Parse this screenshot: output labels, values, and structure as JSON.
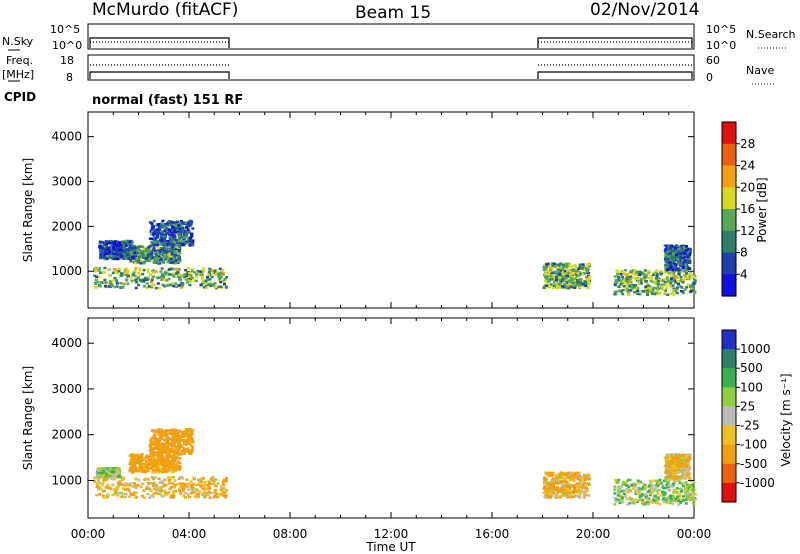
{
  "header": {
    "station": "McMurdo (fitACF)",
    "beam": "Beam 15",
    "date": "02/Nov/2014"
  },
  "top_panels": {
    "nsky_label": "N.Sky",
    "nsky_ticks": [
      "10^5",
      "10^0"
    ],
    "nsearch_label": "N.Search",
    "nsearch_ticks": [
      "10^5",
      "10^0"
    ],
    "freq_label_line1": "Freq.",
    "freq_label_line2": "[MHz]",
    "freq_ticks": [
      "18",
      "8"
    ],
    "nave_label": "Nave",
    "nave_ticks": [
      "60",
      "0"
    ],
    "cpid_label": "CPID",
    "cpid_value": "normal (fast) 151 RF"
  },
  "chart_data": [
    {
      "type": "heatmap",
      "name": "power",
      "ylabel": "Slant Range [km]",
      "yticks": [
        "4000",
        "3000",
        "2000",
        "1000"
      ],
      "ylim": [
        180,
        4550
      ],
      "colorbar_label": "Power [dB]",
      "colorbar_ticks": [
        "28",
        "24",
        "20",
        "16",
        "12",
        "8",
        "4"
      ],
      "colors": [
        "#1010e0",
        "#2040b0",
        "#2e7e6a",
        "#59a858",
        "#d8d820",
        "#f0a010",
        "#e86010",
        "#e01010"
      ],
      "blobs": [
        {
          "t": [
            0.2,
            5.45
          ],
          "r": [
            650,
            1100
          ],
          "v": 14
        },
        {
          "t": [
            1.6,
            3.6
          ],
          "r": [
            1200,
            1600
          ],
          "v": 11
        },
        {
          "t": [
            2.4,
            4.1
          ],
          "r": [
            1600,
            2150
          ],
          "v": 7
        },
        {
          "t": [
            0.4,
            1.8
          ],
          "r": [
            1300,
            1700
          ],
          "v": 6
        },
        {
          "t": [
            18.0,
            19.8
          ],
          "r": [
            650,
            1200
          ],
          "v": 13
        },
        {
          "t": [
            20.8,
            24.0
          ],
          "r": [
            500,
            1050
          ],
          "v": 14
        },
        {
          "t": [
            22.8,
            23.8
          ],
          "r": [
            1050,
            1600
          ],
          "v": 8
        }
      ]
    },
    {
      "type": "heatmap",
      "name": "velocity",
      "ylabel": "Slant Range [km]",
      "yticks": [
        "4000",
        "3000",
        "2000",
        "1000"
      ],
      "ylim": [
        180,
        4550
      ],
      "colorbar_label": "Velocity [m s⁻¹]",
      "colorbar_ticks": [
        "1000",
        "500",
        "100",
        "25",
        "-25",
        "-100",
        "-500",
        "-1000"
      ],
      "colors": [
        "#2030c0",
        "#2e7e6a",
        "#3cb050",
        "#90d040",
        "#bbbbbb",
        "#f0c020",
        "#f0a010",
        "#e86010",
        "#e01010"
      ],
      "blobs": [
        {
          "t": [
            0.2,
            5.45
          ],
          "r": [
            650,
            1100
          ],
          "v": -100
        },
        {
          "t": [
            1.6,
            3.6
          ],
          "r": [
            1200,
            1600
          ],
          "v": -200
        },
        {
          "t": [
            2.4,
            4.1
          ],
          "r": [
            1600,
            2150
          ],
          "v": -300
        },
        {
          "t": [
            0.3,
            1.2
          ],
          "r": [
            1100,
            1300
          ],
          "v": 50
        },
        {
          "t": [
            18.0,
            19.8
          ],
          "r": [
            650,
            1200
          ],
          "v": -100
        },
        {
          "t": [
            20.8,
            24.0
          ],
          "r": [
            500,
            1050
          ],
          "v": 60
        },
        {
          "t": [
            22.8,
            23.8
          ],
          "r": [
            1050,
            1600
          ],
          "v": -80
        }
      ]
    }
  ],
  "xaxis": {
    "label": "Time UT",
    "ticks": [
      "00:00",
      "04:00",
      "08:00",
      "12:00",
      "16:00",
      "20:00",
      "00:00"
    ]
  }
}
